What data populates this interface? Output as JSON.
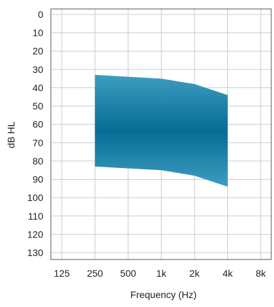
{
  "chart_data": {
    "type": "area",
    "title": "",
    "xlabel": "Frequency (Hz)",
    "ylabel": "dB HL",
    "x_categories": [
      "125",
      "250",
      "500",
      "1k",
      "2k",
      "4k",
      "8k"
    ],
    "x_scale": "log2",
    "y_reversed": true,
    "ylim": [
      0,
      130
    ],
    "y_ticks": [
      0,
      10,
      20,
      30,
      40,
      50,
      60,
      70,
      80,
      90,
      100,
      110,
      120,
      130
    ],
    "grid": true,
    "legend": "none",
    "series": [
      {
        "x": [
          "250",
          "500",
          "1k",
          "2k",
          "4k"
        ],
        "lower_db": [
          33,
          34,
          35,
          38,
          44
        ],
        "upper_db": [
          83,
          84,
          85,
          88,
          94
        ]
      }
    ],
    "colors": {
      "band_edge": "#3e9dc0",
      "band_center": "#066d95",
      "grid": "#c8ccd4",
      "frame": "#555555"
    }
  }
}
